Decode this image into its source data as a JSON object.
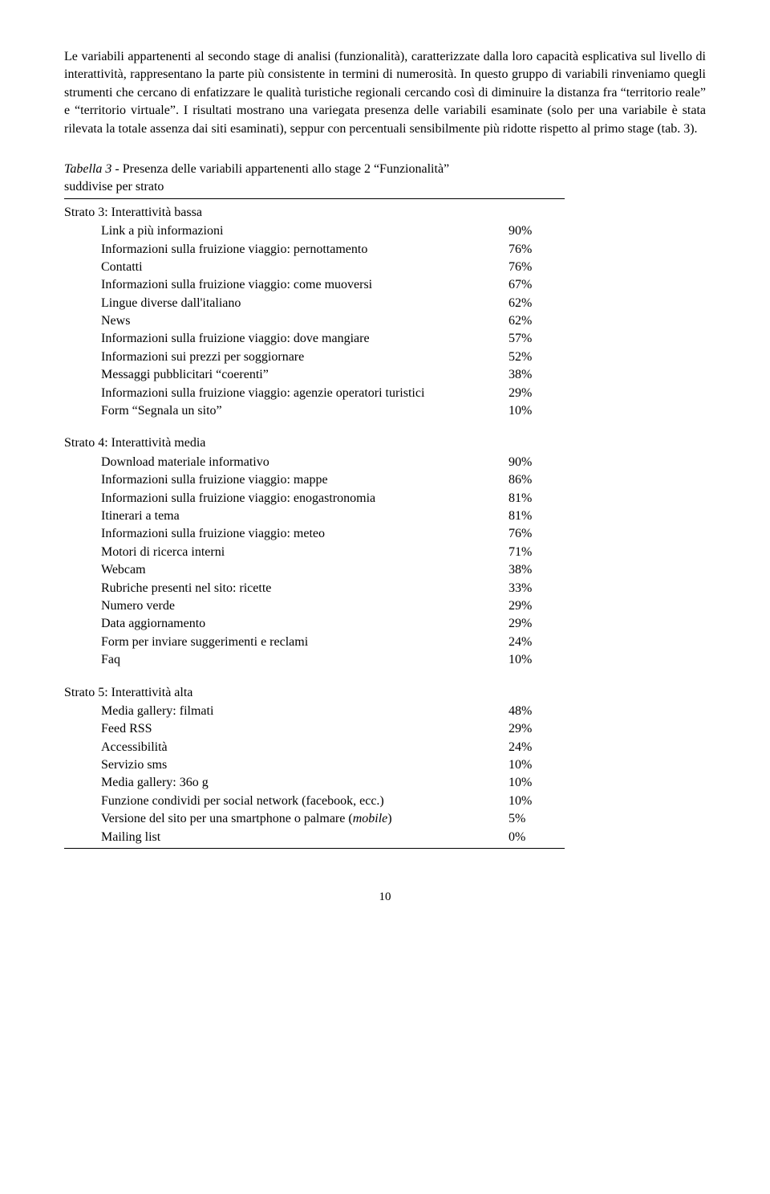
{
  "intro_paragraph": "Le variabili appartenenti al secondo stage di analisi (funzionalità), caratterizzate dalla loro capacità esplicativa sul livello di interattività, rappresentano la parte più consistente in termini di numerosità. In questo gruppo di variabili rinveniamo quegli strumenti che cercano di enfatizzare le qualità turistiche regionali cercando così di diminuire la distanza fra “territorio reale” e “territorio virtuale”.",
  "intro_paragraph2": "I risultati mostrano una variegata presenza delle variabili esaminate (solo per una variabile è stata rilevata la totale assenza dai siti esaminati), seppur con percentuali sensibilmente più ridotte rispetto al primo stage (tab. 3).",
  "table_title_prefix": "Tabella 3",
  "table_title_rest": " - Presenza delle variabili appartenenti allo stage 2 “Funzionalità”",
  "table_subtitle": "suddivise per strato",
  "strata": [
    {
      "heading": "Strato 3: Interattività bassa",
      "rows": [
        {
          "label": "Link a più informazioni",
          "pct": "90%"
        },
        {
          "label": "Informazioni sulla fruizione viaggio: pernottamento",
          "pct": "76%"
        },
        {
          "label": "Contatti",
          "pct": "76%"
        },
        {
          "label": "Informazioni sulla fruizione viaggio: come muoversi",
          "pct": "67%"
        },
        {
          "label": "Lingue diverse dall'italiano",
          "pct": "62%"
        },
        {
          "label": "News",
          "pct": "62%"
        },
        {
          "label": "Informazioni sulla fruizione viaggio: dove mangiare",
          "pct": "57%"
        },
        {
          "label": "Informazioni sui prezzi per soggiornare",
          "pct": "52%"
        },
        {
          "label": "Messaggi pubblicitari “coerenti”",
          "pct": "38%"
        },
        {
          "label": "Informazioni sulla fruizione viaggio: agenzie operatori turistici",
          "pct": "29%"
        },
        {
          "label": "Form “Segnala un sito”",
          "pct": "10%"
        }
      ]
    },
    {
      "heading": "Strato 4: Interattività media",
      "rows": [
        {
          "label": "Download materiale informativo",
          "pct": "90%"
        },
        {
          "label": "Informazioni sulla fruizione viaggio: mappe",
          "pct": "86%"
        },
        {
          "label": "Informazioni sulla fruizione viaggio: enogastronomia",
          "pct": "81%"
        },
        {
          "label": "Itinerari a tema",
          "pct": "81%"
        },
        {
          "label": "Informazioni sulla fruizione viaggio: meteo",
          "pct": "76%"
        },
        {
          "label": "Motori di ricerca interni",
          "pct": "71%"
        },
        {
          "label": "Webcam",
          "pct": "38%"
        },
        {
          "label": "Rubriche presenti nel sito: ricette",
          "pct": "33%"
        },
        {
          "label": "Numero verde",
          "pct": "29%"
        },
        {
          "label": "Data aggiornamento",
          "pct": "29%"
        },
        {
          "label": "Form per inviare suggerimenti e reclami",
          "pct": "24%"
        },
        {
          "label": "Faq",
          "pct": "10%"
        }
      ]
    },
    {
      "heading": "Strato 5: Interattività alta",
      "rows": [
        {
          "label": "Media gallery: filmati",
          "pct": "48%"
        },
        {
          "label": "Feed RSS",
          "pct": "29%"
        },
        {
          "label": "Accessibilità",
          "pct": "24%"
        },
        {
          "label": "Servizio sms",
          "pct": "10%"
        },
        {
          "label": "Media gallery: 36o g",
          "pct": "10%"
        },
        {
          "label": "Funzione condividi per social network (facebook, ecc.)",
          "pct": "10%"
        },
        {
          "label_html": true,
          "label_pre": "Versione del sito per una smartphone o palmare (",
          "label_italic": "mobile",
          "label_post": ")",
          "pct": "5%"
        },
        {
          "label": "Mailing list",
          "pct": "0%"
        }
      ]
    }
  ],
  "page_number": "10"
}
